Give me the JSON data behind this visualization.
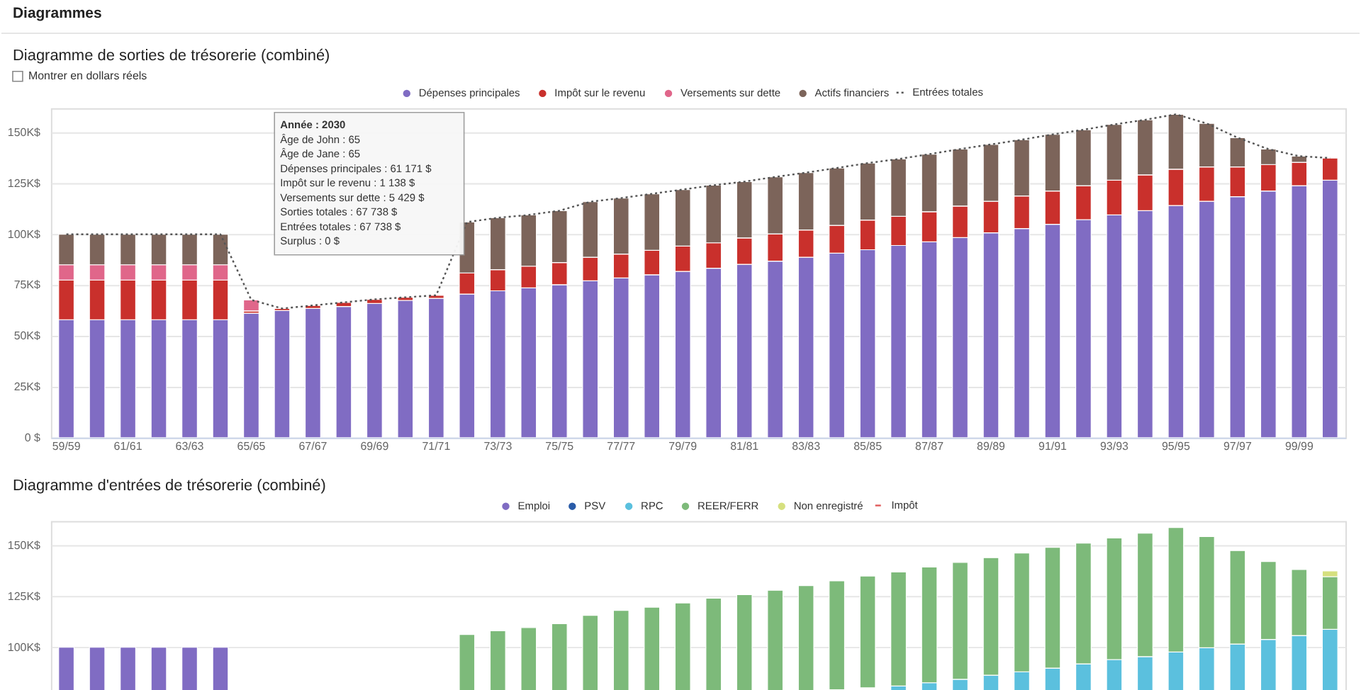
{
  "chart_data": [
    {
      "type": "bar",
      "title": "Diagramme de sorties de trésorerie (combiné)",
      "stacked": true,
      "grid": "y",
      "legend": "top",
      "annotations": [
        "Diagrammes",
        "Montrer en dollars réels",
        "Année : 2030",
        "Âge de John : 65",
        "Âge de Jane : 65",
        "Dépenses principales : 61 171 $",
        "Impôt sur le revenu : 1 138 $",
        "Versements sur dette : 5 429 $",
        "Sorties totales : 67 738 $",
        "Entrées totales : 67 738 $",
        "Surplus : 0 $"
      ],
      "categories": [
        "59/59",
        null,
        "61/61",
        null,
        "63/63",
        null,
        "65/65",
        null,
        "67/67",
        null,
        "69/69",
        null,
        "71/71",
        null,
        "73/73",
        null,
        "75/75",
        null,
        "77/77",
        null,
        "79/79",
        null,
        "81/81",
        null,
        "83/83",
        null,
        "85/85",
        null,
        "87/87",
        null,
        "89/89",
        null,
        "91/91",
        null,
        "93/93",
        null,
        "95/95",
        null,
        "97/97",
        null,
        "99/99",
        null
      ],
      "ylim": [
        0,
        162000
      ],
      "yticks": [
        {
          "value": 0,
          "label": "0 $"
        },
        {
          "value": 25000,
          "label": "25K$"
        },
        {
          "value": 50000,
          "label": "50K$"
        },
        {
          "value": 75000,
          "label": "75K$"
        },
        {
          "value": 100000,
          "label": "100K$"
        },
        {
          "value": 125000,
          "label": "125K$"
        },
        {
          "value": 150000,
          "label": "150K$"
        }
      ],
      "series": [
        {
          "name": "Dépenses principales",
          "color": "#806cc3",
          "values": [
            58000,
            58000,
            58000,
            58000,
            58000,
            58000,
            61171,
            62500,
            63500,
            64500,
            66000,
            67500,
            68500,
            70600,
            72200,
            73600,
            75200,
            77100,
            78500,
            80100,
            81700,
            83300,
            85200,
            86800,
            88700,
            90700,
            92400,
            94500,
            96300,
            98400,
            100700,
            102800,
            104900,
            107200,
            109500,
            111600,
            114100,
            116200,
            118500,
            121300,
            123900,
            126600
          ]
        },
        {
          "name": "Impôt sur le revenu",
          "color": "#c9302c",
          "values": [
            19500,
            19500,
            19500,
            19500,
            19500,
            19500,
            1138,
            1000,
            1500,
            2000,
            2000,
            1500,
            1500,
            10400,
            10400,
            10700,
            10900,
            11600,
            11800,
            12000,
            12500,
            12500,
            13000,
            13400,
            13400,
            13700,
            14600,
            14300,
            14800,
            15500,
            15500,
            16000,
            16400,
            16700,
            17100,
            17600,
            17900,
            16900,
            14600,
            13000,
            11500,
            10900
          ]
        },
        {
          "name": "Versements sur dette",
          "color": "#e0668a",
          "values": [
            7500,
            7500,
            7500,
            7500,
            7500,
            7500,
            5429,
            null,
            null,
            null,
            null,
            null,
            null,
            null,
            null,
            null,
            null,
            null,
            null,
            null,
            null,
            null,
            null,
            null,
            null,
            null,
            null,
            null,
            null,
            null,
            null,
            null,
            null,
            null,
            null,
            null,
            null,
            null,
            null,
            null,
            null,
            null
          ]
        },
        {
          "name": "Actifs financiers",
          "color": "#7c645a",
          "values": [
            15000,
            15000,
            15000,
            15000,
            15000,
            15000,
            null,
            null,
            null,
            null,
            null,
            null,
            null,
            25000,
            25500,
            25200,
            25500,
            27300,
            27500,
            27800,
            27800,
            28300,
            27700,
            28000,
            28200,
            28200,
            28000,
            28200,
            28300,
            28000,
            28000,
            27700,
            27800,
            27500,
            27400,
            27100,
            27000,
            21400,
            14400,
            7600,
            3000,
            null
          ]
        },
        {
          "name": "Entrées totales",
          "type": "line",
          "line_style": "dotted",
          "color": "#555555",
          "values": [
            100000,
            100000,
            100000,
            100000,
            100000,
            100000,
            67738,
            63500,
            65000,
            66500,
            68000,
            69000,
            70000,
            106000,
            108100,
            109500,
            111600,
            116000,
            117800,
            119900,
            122000,
            124100,
            125900,
            128200,
            130300,
            132600,
            135000,
            137000,
            139400,
            141900,
            144200,
            146500,
            149100,
            151400,
            154000,
            156300,
            159000,
            154500,
            147500,
            141900,
            138400,
            137500
          ]
        }
      ]
    },
    {
      "type": "bar",
      "title": "Diagramme d'entrées de trésorerie (combiné)",
      "grid": "y",
      "legend": "top",
      "tick_labels": "y",
      "categories": [
        null,
        null,
        null,
        null,
        null,
        null,
        null,
        null,
        null,
        null,
        null,
        null,
        null,
        null,
        null,
        null,
        null,
        null,
        null,
        null,
        null,
        null,
        null,
        null,
        null,
        null,
        null,
        null,
        null,
        null,
        null,
        null,
        null,
        null,
        null,
        null,
        null,
        null,
        null,
        null,
        null,
        null
      ],
      "ylim": [
        78000,
        162000
      ],
      "yticks": [
        {
          "value": 100000,
          "label": "100K$"
        },
        {
          "value": 125000,
          "label": "125K$"
        },
        {
          "value": 150000,
          "label": "150K$"
        }
      ],
      "series": [
        {
          "name": "Emploi",
          "color": "#806cc3",
          "values": [
            100000,
            100000,
            100000,
            100000,
            100000,
            100000,
            null,
            null,
            null,
            null,
            null,
            null,
            null,
            null,
            null,
            null,
            null,
            null,
            null,
            null,
            null,
            null,
            null,
            null,
            null,
            null,
            null,
            null,
            null,
            null,
            null,
            null,
            null,
            null,
            null,
            null,
            null,
            null,
            null,
            null,
            null,
            null
          ]
        },
        {
          "name": "PSV",
          "color": "#2a5ca8",
          "values": [
            null,
            null,
            null,
            null,
            null,
            null,
            null,
            null,
            null,
            null,
            null,
            null,
            null,
            null,
            null,
            null,
            null,
            null,
            null,
            null,
            null,
            null,
            null,
            null,
            null,
            null,
            null,
            null,
            null,
            null,
            null,
            null,
            null,
            null,
            null,
            null,
            null,
            null,
            null,
            null,
            null,
            null
          ]
        },
        {
          "name": "RPC",
          "color": "#5bc0de",
          "values": [
            null,
            null,
            null,
            null,
            null,
            null,
            null,
            null,
            null,
            null,
            null,
            null,
            null,
            null,
            null,
            null,
            null,
            null,
            null,
            null,
            null,
            null,
            null,
            null,
            null,
            null,
            null,
            81000,
            82600,
            84300,
            86300,
            88000,
            89800,
            91900,
            94000,
            95400,
            97700,
            99800,
            101600,
            103900,
            105800,
            108800
          ]
        },
        {
          "name": "REER/FERR",
          "color": "#7dba7a",
          "base": [
            null,
            null,
            null,
            null,
            null,
            null,
            null,
            null,
            null,
            null,
            null,
            null,
            null,
            0,
            0,
            0,
            0,
            0,
            0,
            0,
            0,
            0,
            0,
            0,
            0,
            79200,
            80100,
            81000,
            82600,
            84300,
            86300,
            88000,
            89800,
            91900,
            94000,
            95400,
            97700,
            99800,
            101600,
            103900,
            105800,
            108800
          ],
          "values": [
            null,
            null,
            null,
            null,
            null,
            null,
            null,
            null,
            null,
            null,
            null,
            null,
            null,
            106300,
            108100,
            109700,
            111600,
            115700,
            118100,
            119700,
            121800,
            124100,
            125900,
            128000,
            130300,
            53400,
            54900,
            56000,
            56800,
            57400,
            57700,
            58300,
            59300,
            59300,
            59700,
            60600,
            61100,
            54600,
            45900,
            38200,
            32400,
            25900
          ]
        },
        {
          "name": "Non enregistré",
          "color": "#d6e07f",
          "base": [
            null,
            null,
            null,
            null,
            null,
            null,
            null,
            null,
            null,
            null,
            null,
            null,
            null,
            null,
            null,
            null,
            null,
            null,
            null,
            null,
            null,
            null,
            null,
            null,
            null,
            null,
            null,
            null,
            null,
            null,
            null,
            null,
            null,
            null,
            null,
            null,
            null,
            null,
            null,
            null,
            null,
            134700
          ],
          "values": [
            null,
            null,
            null,
            null,
            null,
            null,
            null,
            null,
            null,
            null,
            null,
            null,
            null,
            null,
            null,
            null,
            null,
            null,
            null,
            null,
            null,
            null,
            null,
            null,
            null,
            null,
            null,
            null,
            null,
            null,
            null,
            null,
            null,
            null,
            null,
            null,
            null,
            null,
            null,
            null,
            null,
            2800
          ]
        },
        {
          "name": "Impôt",
          "type": "line",
          "line_style": "dashed",
          "color": "#e05a5a",
          "values": [
            null,
            null,
            null,
            null,
            null,
            null,
            null,
            null,
            null,
            null,
            null,
            null,
            null,
            null,
            null,
            null,
            null,
            null,
            null,
            null,
            null,
            null,
            null,
            null,
            null,
            null,
            null,
            null,
            null,
            null,
            null,
            null,
            null,
            null,
            null,
            null,
            null,
            null,
            null,
            null,
            null,
            null
          ]
        }
      ]
    }
  ]
}
